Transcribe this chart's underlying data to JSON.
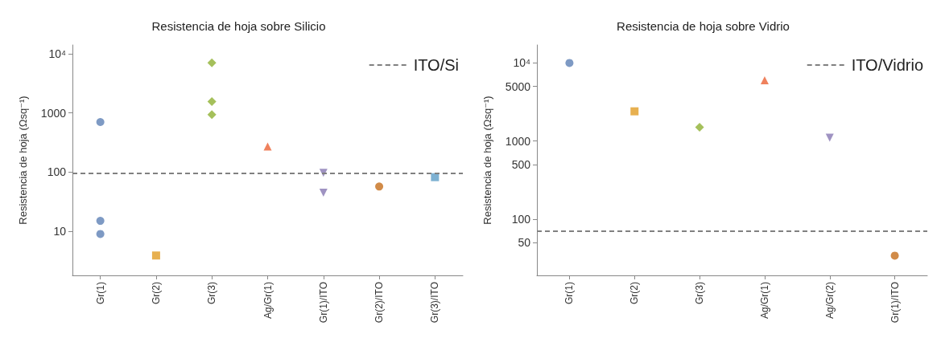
{
  "chart_data": [
    {
      "type": "scatter",
      "title": "Resistencia de hoja sobre Silicio",
      "ylabel": "Resistencia de hoja (Ωsq⁻¹)",
      "log": "y",
      "grid": false,
      "legend": "top right",
      "categories": [
        "Gr(1)",
        "Gr(2)",
        "Gr(3)",
        "Ag/Gr(1)",
        "Gr(1)/ITO",
        "Gr(2)/ITO",
        "Gr(3)/ITO"
      ],
      "ylim": [
        1.8,
        14000
      ],
      "yticks": [
        10,
        100,
        1000,
        {
          "value": 10000,
          "label": "10⁴"
        }
      ],
      "series": [
        {
          "x": [
            "Gr(1)",
            "Gr(1)",
            "Gr(1)"
          ],
          "values": [
            700,
            15,
            9
          ],
          "color": "#5e81b5",
          "marker": "circle"
        },
        {
          "x": [
            "Gr(2)"
          ],
          "values": [
            3.9
          ],
          "color": "#e19c24",
          "marker": "square"
        },
        {
          "x": [
            "Gr(3)",
            "Gr(3)",
            "Gr(3)",
            "Gr(3)"
          ],
          "values": [
            7000,
            1550,
            null,
            930
          ],
          "color": "#8fb032",
          "marker": "diamond"
        },
        {
          "x": [
            "Ag/Gr(1)"
          ],
          "values": [
            270
          ],
          "color": "#eb6235",
          "marker": "triangle"
        },
        {
          "x": [
            "Gr(1)/ITO",
            "Gr(1)/ITO"
          ],
          "values": [
            97,
            45
          ],
          "color": "#8778b3",
          "marker": "triangle-down"
        },
        {
          "x": [
            "Gr(2)/ITO"
          ],
          "values": [
            57
          ],
          "color": "#c56e1a",
          "marker": "circle"
        },
        {
          "x": [
            "Gr(3)/ITO"
          ],
          "values": [
            82
          ],
          "color": "#5d9ec7",
          "marker": "square"
        }
      ],
      "ref_lines": [
        {
          "axis": "y",
          "value": 97,
          "label": "ITO/Si",
          "color": "#808080",
          "line_style": "dashed"
        }
      ]
    },
    {
      "type": "scatter",
      "title": "Resistencia de hoja sobre Vidrio",
      "ylabel": "Resistencia de hoja (Ωsq⁻¹)",
      "log": "y",
      "grid": false,
      "legend": "top right",
      "categories": [
        "Gr(1)",
        "Gr(2)",
        "Gr(3)",
        "Ag/Gr(1)",
        "Ag/Gr(2)",
        "Gr(1)/ITO"
      ],
      "ylim": [
        19,
        17000
      ],
      "yticks": [
        50,
        100,
        500,
        1000,
        5000,
        {
          "value": 10000,
          "label": "10⁴"
        }
      ],
      "series": [
        {
          "x": [
            "Gr(1)"
          ],
          "values": [
            10000
          ],
          "color": "#5e81b5",
          "marker": "circle"
        },
        {
          "x": [
            "Gr(2)"
          ],
          "values": [
            2400
          ],
          "color": "#e19c24",
          "marker": "square"
        },
        {
          "x": [
            "Gr(3)"
          ],
          "values": [
            1500
          ],
          "color": "#8fb032",
          "marker": "diamond"
        },
        {
          "x": [
            "Ag/Gr(1)"
          ],
          "values": [
            6000
          ],
          "color": "#eb6235",
          "marker": "triangle"
        },
        {
          "x": [
            "Ag/Gr(2)"
          ],
          "values": [
            1100
          ],
          "color": "#8778b3",
          "marker": "triangle-down"
        },
        {
          "x": [
            "Gr(1)/ITO"
          ],
          "values": [
            34
          ],
          "color": "#c56e1a",
          "marker": "circle"
        }
      ],
      "ref_lines": [
        {
          "axis": "y",
          "value": 70,
          "label": "ITO/Vidrio",
          "color": "#808080",
          "line_style": "dashed"
        }
      ]
    }
  ]
}
